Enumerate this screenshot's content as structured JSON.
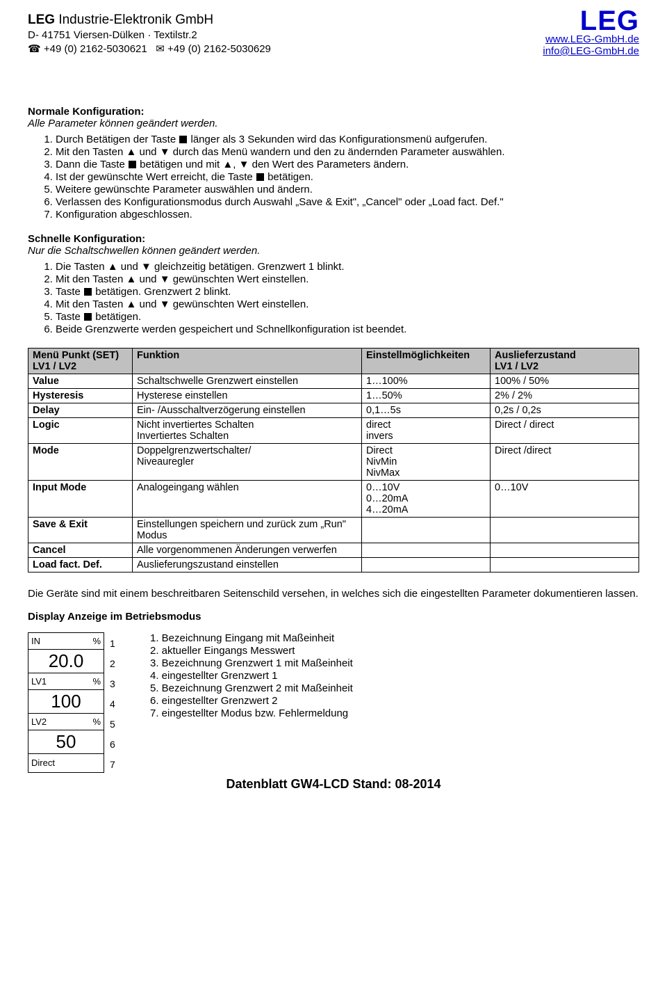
{
  "header": {
    "company_bold": "LEG",
    "company_rest": " Industrie-Elektronik GmbH",
    "address": "D- 41751 Viersen-Dülken · Textilstr.2",
    "phone": "+49 (0) 2162-5030621",
    "fax": "+49 (0) 2162-5030629",
    "brand": "LEG",
    "url": "www.LEG-GmbH.de",
    "email": "info@LEG-GmbH.de"
  },
  "sec1": {
    "title": "Normale Konfiguration:",
    "subtitle": "Alle Parameter können geändert werden.",
    "items": [
      "Durch Betätigen der Taste ■ länger als 3 Sekunden wird das Konfigurationsmenü aufgerufen.",
      "Mit den Tasten ▲ und ▼ durch das Menü wandern und den zu ändernden Parameter auswählen.",
      "Dann die Taste ■ betätigen und mit ▲, ▼ den Wert des Parameters ändern.",
      "Ist der gewünschte Wert erreicht, die Taste ■ betätigen.",
      "Weitere gewünschte Parameter auswählen und ändern.",
      "Verlassen des Konfigurationsmodus durch Auswahl „Save & Exit\", „Cancel\" oder „Load fact. Def.\"",
      "Konfiguration abgeschlossen."
    ]
  },
  "sec2": {
    "title": "Schnelle Konfiguration:",
    "subtitle": "Nur die Schaltschwellen können geändert werden.",
    "items": [
      "Die Tasten ▲ und ▼ gleichzeitig betätigen. Grenzwert 1 blinkt.",
      "Mit den Tasten ▲ und ▼ gewünschten Wert einstellen.",
      "Taste ■ betätigen. Grenzwert 2 blinkt.",
      "Mit den Tasten ▲ und ▼ gewünschten Wert einstellen.",
      "Taste ■ betätigen.",
      "Beide Grenzwerte werden gespeichert und Schnellkonfiguration ist beendet."
    ]
  },
  "table": {
    "headers": {
      "col1a": "Menü Punkt (SET)",
      "col1b": "LV1 / LV2",
      "col2": "Funktion",
      "col3": "Einstellmöglichkeiten",
      "col4a": "Auslieferzustand",
      "col4b": "LV1 / LV2"
    },
    "rows": [
      {
        "c1": "Value",
        "c2": "Schaltschwelle Grenzwert einstellen",
        "c3": "1…100%",
        "c4": "100% / 50%"
      },
      {
        "c1": "Hysteresis",
        "c2": "Hysterese einstellen",
        "c3": "1…50%",
        "c4": "2% / 2%"
      },
      {
        "c1": "Delay",
        "c2": "Ein- /Ausschaltverzögerung einstellen",
        "c3": "0,1…5s",
        "c4": "0,2s / 0,2s"
      },
      {
        "c1": "Logic",
        "c2": "Nicht invertiertes Schalten\nInvertiertes Schalten",
        "c3": "direct\ninvers",
        "c4": "Direct / direct"
      },
      {
        "c1": "Mode",
        "c2": "Doppelgrenzwertschalter/\nNiveauregler",
        "c3": "Direct\nNivMin\nNivMax",
        "c4": "Direct /direct"
      },
      {
        "c1": "Input Mode",
        "c2": "Analogeingang wählen",
        "c3": "0…10V\n0…20mA\n4…20mA",
        "c4": "0…10V"
      },
      {
        "c1": "Save & Exit",
        "c2": "Einstellungen speichern und zurück zum „Run\" Modus",
        "c3": "",
        "c4": ""
      },
      {
        "c1": "Cancel",
        "c2": "Alle vorgenommenen Änderungen verwerfen",
        "c3": "",
        "c4": ""
      },
      {
        "c1": "Load fact. Def.",
        "c2": "Auslieferungszustand einstellen",
        "c3": "",
        "c4": ""
      }
    ]
  },
  "note": "Die Geräte sind mit einem beschreitbaren Seitenschild versehen, in welches sich die eingestellten Parameter dokumentieren lassen.",
  "display": {
    "title": "Display Anzeige im Betriebsmodus",
    "rows": [
      {
        "left": "IN",
        "right": "%",
        "big": ""
      },
      {
        "left": "",
        "right": "",
        "big": "20.0"
      },
      {
        "left": "LV1",
        "right": "%",
        "big": ""
      },
      {
        "left": "",
        "right": "",
        "big": "100"
      },
      {
        "left": "LV2",
        "right": "%",
        "big": ""
      },
      {
        "left": "",
        "right": "",
        "big": "50"
      },
      {
        "left": "Direct",
        "right": "",
        "big": ""
      }
    ],
    "numbers": [
      "1",
      "2",
      "3",
      "4",
      "5",
      "6",
      "7"
    ],
    "legend": [
      "1. Bezeichnung Eingang mit Maßeinheit",
      "2. aktueller Eingangs Messwert",
      "3. Bezeichnung Grenzwert 1 mit Maßeinheit",
      "4. eingestellter Grenzwert 1",
      "5. Bezeichnung Grenzwert 2 mit Maßeinheit",
      "6. eingestellter Grenzwert 2",
      "7. eingestellter Modus bzw. Fehlermeldung"
    ]
  },
  "footer": "Datenblatt GW4-LCD Stand: 08-2014"
}
